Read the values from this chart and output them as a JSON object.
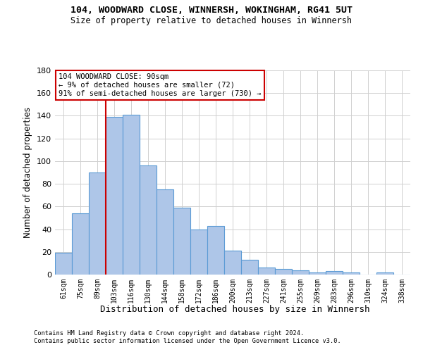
{
  "title1": "104, WOODWARD CLOSE, WINNERSH, WOKINGHAM, RG41 5UT",
  "title2": "Size of property relative to detached houses in Winnersh",
  "xlabel": "Distribution of detached houses by size in Winnersh",
  "ylabel": "Number of detached properties",
  "categories": [
    "61sqm",
    "75sqm",
    "89sqm",
    "103sqm",
    "116sqm",
    "130sqm",
    "144sqm",
    "158sqm",
    "172sqm",
    "186sqm",
    "200sqm",
    "213sqm",
    "227sqm",
    "241sqm",
    "255sqm",
    "269sqm",
    "283sqm",
    "296sqm",
    "310sqm",
    "324sqm",
    "338sqm"
  ],
  "values": [
    19,
    54,
    90,
    139,
    141,
    96,
    75,
    59,
    40,
    43,
    21,
    13,
    6,
    5,
    4,
    2,
    3,
    2,
    0,
    2,
    0
  ],
  "bar_color": "#aec6e8",
  "bar_edge_color": "#5b9bd5",
  "ylim": [
    0,
    180
  ],
  "yticks": [
    0,
    20,
    40,
    60,
    80,
    100,
    120,
    140,
    160,
    180
  ],
  "red_line_x": 2,
  "annotation_text1": "104 WOODWARD CLOSE: 90sqm",
  "annotation_text2": "← 9% of detached houses are smaller (72)",
  "annotation_text3": "91% of semi-detached houses are larger (730) →",
  "annotation_box_color": "#ffffff",
  "annotation_border_color": "#cc0000",
  "footer1": "Contains HM Land Registry data © Crown copyright and database right 2024.",
  "footer2": "Contains public sector information licensed under the Open Government Licence v3.0.",
  "background_color": "#ffffff",
  "grid_color": "#d0d0d0"
}
